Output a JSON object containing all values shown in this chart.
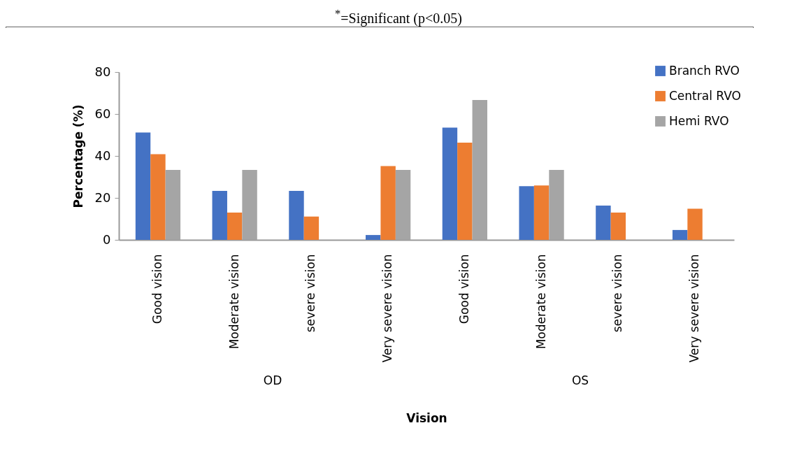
{
  "chart_data": {
    "type": "bar",
    "title": "$^{*}$=Significant (p<0.05)",
    "xlabel": "Vision",
    "ylabel": "Percentage (%)",
    "categories": [
      "Good vision",
      "Moderate vision",
      "severe vision",
      "Very severe vision",
      "Good vision",
      "Moderate vision",
      "severe vision",
      "Very severe vision"
    ],
    "series": [
      {
        "name": "Branch RVO",
        "color": "#4472c4",
        "values": [
          51.2,
          23.3,
          23.3,
          2.3,
          53.5,
          25.6,
          16.3,
          4.7
        ]
      },
      {
        "name": "Central RVO",
        "color": "#ed7d31",
        "values": [
          40.8,
          13,
          11.1,
          35.2,
          46.3,
          25.9,
          13,
          14.8
        ]
      },
      {
        "name": "Hemi RVO",
        "color": "#a5a5a5",
        "values": [
          33.3,
          33.3,
          0,
          33.3,
          66.7,
          33.3,
          0,
          0
        ]
      }
    ],
    "ylim": [
      0,
      80
    ],
    "yticks": [
      0,
      20,
      40,
      60,
      80
    ],
    "legend": "top right",
    "annotations": [
      "OD",
      "OS"
    ]
  }
}
